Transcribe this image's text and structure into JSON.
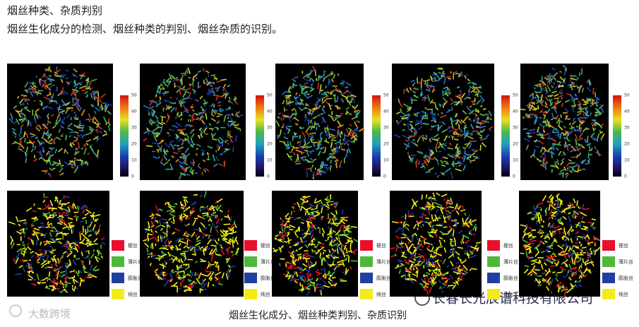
{
  "header": {
    "title": "烟丝种类、杂质判别",
    "subtitle": "烟丝生化成分的检测、烟丝种类的判别、烟丝杂质的识别。"
  },
  "figure": {
    "colorbar_ticks": [
      "50",
      "40",
      "30",
      "20",
      "10",
      "0"
    ],
    "legend": [
      {
        "label": "梗丝",
        "color": "#e8102a"
      },
      {
        "label": "薄片丝",
        "color": "#4fb83a"
      },
      {
        "label": "膨胀丝",
        "color": "#1f3fa0"
      },
      {
        "label": "纯丝",
        "color": "#f2ec18"
      }
    ],
    "caption": "烟丝生化成分、烟丝种类判别、杂质识别"
  },
  "watermarks": {
    "left": "大数跨境",
    "right": "长春长光辰谱科技有限公司"
  }
}
